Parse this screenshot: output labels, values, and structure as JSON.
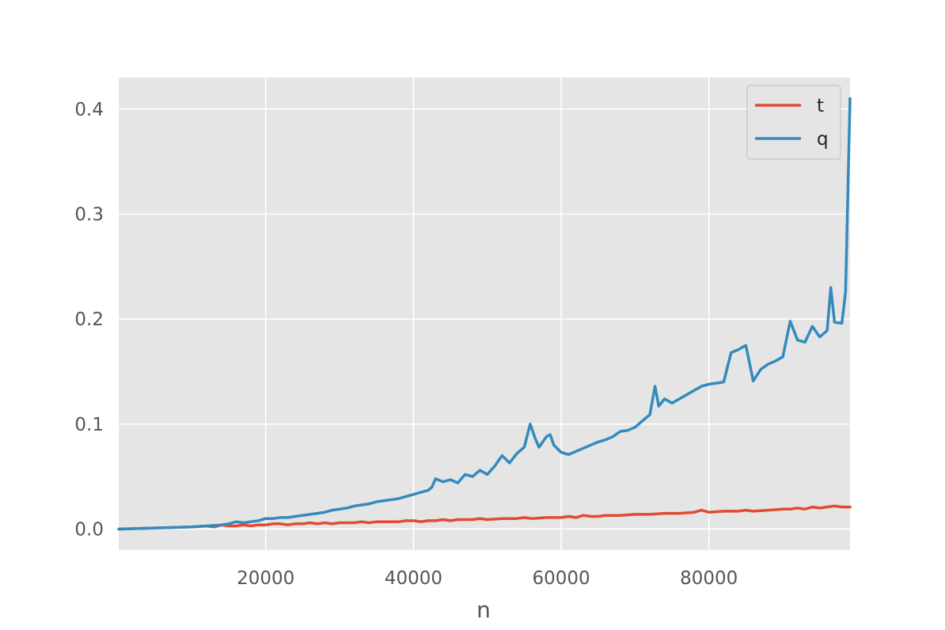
{
  "chart_data": {
    "type": "line",
    "title": "",
    "xlabel": "n",
    "ylabel": "",
    "xlim": [
      100,
      99100
    ],
    "ylim": [
      -0.02,
      0.43
    ],
    "xticks": [
      20000,
      40000,
      60000,
      80000
    ],
    "xtick_labels": [
      "20000",
      "40000",
      "60000",
      "80000"
    ],
    "yticks": [
      0.0,
      0.1,
      0.2,
      0.3,
      0.4
    ],
    "ytick_labels": [
      "0.0",
      "0.1",
      "0.2",
      "0.3",
      "0.4"
    ],
    "grid": true,
    "legend_position": "top-right",
    "colors": {
      "t": "#E24A33",
      "q": "#348ABD",
      "plot_bg": "#E5E5E5",
      "grid": "#FFFFFF"
    },
    "series": [
      {
        "name": "t",
        "color": "#E24A33",
        "x": [
          100,
          5000,
          10000,
          12000,
          13000,
          14000,
          15000,
          16000,
          17000,
          18000,
          19000,
          20000,
          21000,
          22000,
          23000,
          24000,
          25000,
          26000,
          27000,
          28000,
          29000,
          30000,
          31000,
          32000,
          33000,
          34000,
          35000,
          36000,
          37000,
          38000,
          39000,
          40000,
          41000,
          42000,
          43000,
          44000,
          45000,
          46000,
          47000,
          48000,
          49000,
          50000,
          52000,
          54000,
          55000,
          56000,
          58000,
          60000,
          61000,
          62000,
          63000,
          64000,
          65000,
          66000,
          68000,
          70000,
          72000,
          74000,
          76000,
          78000,
          79000,
          80000,
          82000,
          84000,
          85000,
          86000,
          88000,
          90000,
          91000,
          92000,
          93000,
          94000,
          95000,
          96000,
          97000,
          98000,
          99100
        ],
        "y": [
          0.0,
          0.001,
          0.002,
          0.003,
          0.002,
          0.004,
          0.003,
          0.003,
          0.004,
          0.003,
          0.004,
          0.004,
          0.005,
          0.005,
          0.004,
          0.005,
          0.005,
          0.006,
          0.005,
          0.006,
          0.005,
          0.006,
          0.006,
          0.006,
          0.007,
          0.006,
          0.007,
          0.007,
          0.007,
          0.007,
          0.008,
          0.008,
          0.007,
          0.008,
          0.008,
          0.009,
          0.008,
          0.009,
          0.009,
          0.009,
          0.01,
          0.009,
          0.01,
          0.01,
          0.011,
          0.01,
          0.011,
          0.011,
          0.012,
          0.011,
          0.013,
          0.012,
          0.012,
          0.013,
          0.013,
          0.014,
          0.014,
          0.015,
          0.015,
          0.016,
          0.018,
          0.016,
          0.017,
          0.017,
          0.018,
          0.017,
          0.018,
          0.019,
          0.019,
          0.02,
          0.019,
          0.021,
          0.02,
          0.021,
          0.022,
          0.021,
          0.021
        ]
      },
      {
        "name": "q",
        "color": "#348ABD",
        "x": [
          100,
          5000,
          10000,
          12000,
          14000,
          15000,
          16000,
          17000,
          18000,
          19000,
          20000,
          21000,
          22000,
          23000,
          24000,
          25000,
          26000,
          27000,
          28000,
          29000,
          30000,
          31000,
          32000,
          33000,
          34000,
          35000,
          36000,
          37000,
          38000,
          39000,
          40000,
          41000,
          42000,
          42500,
          43000,
          44000,
          45000,
          46000,
          47000,
          48000,
          49000,
          50000,
          51000,
          52000,
          53000,
          54000,
          55000,
          55800,
          56500,
          57000,
          58000,
          58500,
          59000,
          60000,
          61000,
          62000,
          63000,
          64000,
          65000,
          66000,
          67000,
          68000,
          69000,
          70000,
          71000,
          72000,
          72700,
          73200,
          74000,
          75000,
          76000,
          77000,
          78000,
          79000,
          80000,
          81000,
          82000,
          83000,
          84000,
          85000,
          86000,
          87000,
          88000,
          89000,
          90000,
          91000,
          92000,
          93000,
          94000,
          95000,
          96000,
          96500,
          97000,
          98000,
          98500,
          99100
        ],
        "y": [
          0.0,
          0.001,
          0.002,
          0.003,
          0.004,
          0.005,
          0.007,
          0.006,
          0.007,
          0.008,
          0.01,
          0.01,
          0.011,
          0.011,
          0.012,
          0.013,
          0.014,
          0.015,
          0.016,
          0.018,
          0.019,
          0.02,
          0.022,
          0.023,
          0.024,
          0.026,
          0.027,
          0.028,
          0.029,
          0.031,
          0.033,
          0.035,
          0.037,
          0.04,
          0.048,
          0.045,
          0.047,
          0.044,
          0.052,
          0.05,
          0.056,
          0.052,
          0.06,
          0.07,
          0.063,
          0.072,
          0.078,
          0.1,
          0.086,
          0.078,
          0.088,
          0.09,
          0.08,
          0.073,
          0.071,
          0.074,
          0.077,
          0.08,
          0.083,
          0.085,
          0.088,
          0.093,
          0.094,
          0.097,
          0.103,
          0.109,
          0.136,
          0.117,
          0.124,
          0.12,
          0.124,
          0.128,
          0.132,
          0.136,
          0.138,
          0.139,
          0.14,
          0.168,
          0.171,
          0.175,
          0.141,
          0.152,
          0.157,
          0.16,
          0.164,
          0.198,
          0.18,
          0.178,
          0.193,
          0.183,
          0.189,
          0.23,
          0.197,
          0.196,
          0.226,
          0.41
        ]
      }
    ]
  }
}
